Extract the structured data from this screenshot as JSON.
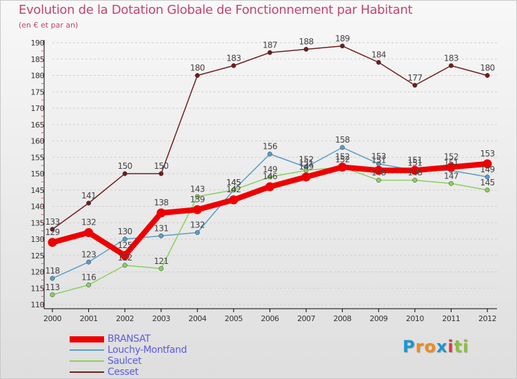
{
  "title": "Evolution de la Dotation Globale de Fonctionnement par Habitant",
  "subtitle": "(en € et par an)",
  "logo": {
    "letters": [
      "P",
      "r",
      "o",
      "x",
      "i",
      "t",
      "i"
    ],
    "colors": [
      "#1b97d1",
      "#f08a1c",
      "#f08a1c",
      "#1b97d1",
      "#e53939",
      "#8cbf3f",
      "#8cbf3f"
    ]
  },
  "chart_data": {
    "type": "line",
    "title": "Evolution de la Dotation Globale de Fonctionnement par Habitant",
    "subtitle": "(en € et par an)",
    "xlabel": "",
    "ylabel": "",
    "ylim": [
      110,
      190
    ],
    "yticks": [
      110,
      115,
      120,
      125,
      130,
      135,
      140,
      145,
      150,
      155,
      160,
      165,
      170,
      175,
      180,
      185,
      190
    ],
    "grid": "horizontal dashed",
    "legend": "bottom-left",
    "categories": [
      "2000",
      "2001",
      "2002",
      "2003",
      "2004",
      "2005",
      "2006",
      "2007",
      "2008",
      "2009",
      "2010",
      "2011",
      "2012"
    ],
    "series": [
      {
        "name": "Cesset",
        "color": "#6e1d1d",
        "values": [
          133,
          141,
          150,
          150,
          180,
          183,
          187,
          188,
          189,
          184,
          177,
          183,
          180
        ]
      },
      {
        "name": "Louchy-Montfand",
        "color": "#5a9cc8",
        "values": [
          118,
          123,
          130,
          131,
          132,
          145,
          156,
          152,
          158,
          153,
          151,
          151,
          149
        ]
      },
      {
        "name": "Saulcet",
        "color": "#88d05e",
        "values": [
          113,
          116,
          122,
          121,
          143,
          145,
          149,
          151,
          152,
          148,
          148,
          147,
          145
        ]
      },
      {
        "name": "BRANSAT",
        "color": "#ee0000",
        "values": [
          129,
          132,
          125,
          138,
          139,
          142,
          146,
          149,
          152,
          151,
          151,
          152,
          153
        ]
      }
    ]
  }
}
